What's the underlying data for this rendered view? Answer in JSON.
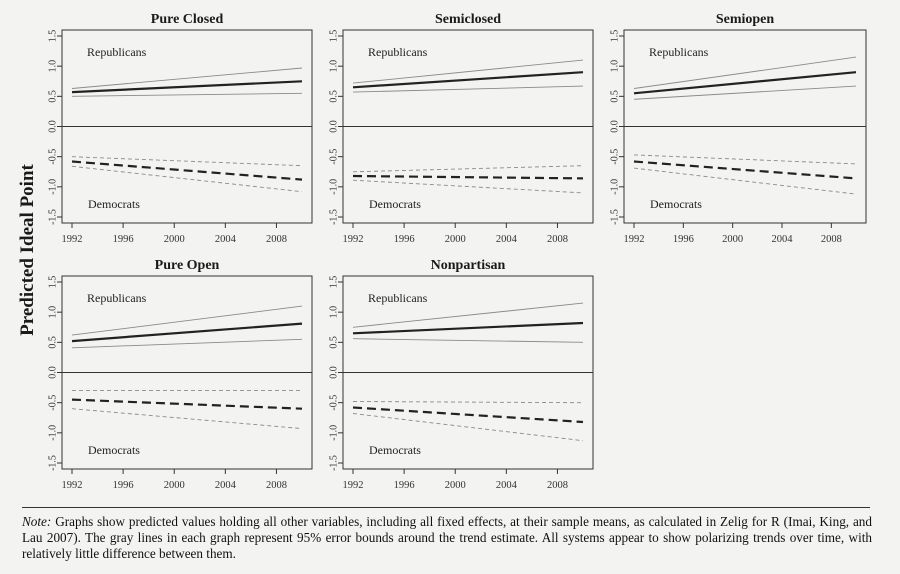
{
  "figure": {
    "y_axis_label": "Predicted Ideal Point",
    "note_label": "Note:",
    "note_text": "Graphs show predicted values holding all other variables, including all fixed effects, at their sample means, as calculated in Zelig for R (Imai, King, and Lau 2007). The gray lines in each graph represent 95% error bounds around the trend estimate. All systems appear to show polarizing trends over time, with relatively little difference between them."
  },
  "colors": {
    "background": "#f3f3f1",
    "estimate_line": "#222222",
    "error_band": "#8a8a8a",
    "axis": "#333333"
  },
  "chart_data": [
    {
      "type": "line",
      "title": "Pure Closed",
      "xlim": [
        1992,
        2010
      ],
      "ylim": [
        -1.5,
        1.5
      ],
      "xticks": [
        "1992",
        "1996",
        "2000",
        "2004",
        "2008"
      ],
      "yticks": [
        "1.5",
        "1.0",
        "0.5",
        "0.0",
        "-0.5",
        "-1.0",
        "-1.5"
      ],
      "series_labels": {
        "republicans": "Republicans",
        "democrats": "Democrats"
      },
      "republicans": {
        "x": [
          1992,
          2010
        ],
        "estimate": [
          0.57,
          0.75
        ],
        "upper": [
          0.63,
          0.97
        ],
        "lower": [
          0.5,
          0.55
        ]
      },
      "democrats": {
        "x": [
          1992,
          2010
        ],
        "estimate": [
          -0.58,
          -0.88
        ],
        "upper": [
          -0.5,
          -0.65
        ],
        "lower": [
          -0.66,
          -1.08
        ]
      }
    },
    {
      "type": "line",
      "title": "Semiclosed",
      "xlim": [
        1992,
        2010
      ],
      "ylim": [
        -1.5,
        1.5
      ],
      "xticks": [
        "1992",
        "1996",
        "2000",
        "2004",
        "2008"
      ],
      "yticks": [
        "1.5",
        "1.0",
        "0.5",
        "0.0",
        "-0.5",
        "-1.0",
        "-1.5"
      ],
      "series_labels": {
        "republicans": "Republicans",
        "democrats": "Democrats"
      },
      "republicans": {
        "x": [
          1992,
          2010
        ],
        "estimate": [
          0.65,
          0.9
        ],
        "upper": [
          0.72,
          1.1
        ],
        "lower": [
          0.57,
          0.67
        ]
      },
      "democrats": {
        "x": [
          1992,
          2010
        ],
        "estimate": [
          -0.82,
          -0.86
        ],
        "upper": [
          -0.75,
          -0.65
        ],
        "lower": [
          -0.89,
          -1.1
        ]
      }
    },
    {
      "type": "line",
      "title": "Semiopen",
      "xlim": [
        1992,
        2010
      ],
      "ylim": [
        -1.5,
        1.5
      ],
      "xticks": [
        "1992",
        "1996",
        "2000",
        "2004",
        "2008"
      ],
      "yticks": [
        "1.5",
        "1.0",
        "0.5",
        "0.0",
        "-0.5",
        "-1.0",
        "-1.5"
      ],
      "series_labels": {
        "republicans": "Republicans",
        "democrats": "Democrats"
      },
      "republicans": {
        "x": [
          1992,
          2010
        ],
        "estimate": [
          0.55,
          0.9
        ],
        "upper": [
          0.63,
          1.15
        ],
        "lower": [
          0.45,
          0.67
        ]
      },
      "democrats": {
        "x": [
          1992,
          2010
        ],
        "estimate": [
          -0.58,
          -0.86
        ],
        "upper": [
          -0.47,
          -0.62
        ],
        "lower": [
          -0.69,
          -1.12
        ]
      }
    },
    {
      "type": "line",
      "title": "Pure Open",
      "xlim": [
        1992,
        2010
      ],
      "ylim": [
        -1.5,
        1.5
      ],
      "xticks": [
        "1992",
        "1996",
        "2000",
        "2004",
        "2008"
      ],
      "yticks": [
        "1.5",
        "1.0",
        "0.5",
        "0.0",
        "-0.5",
        "-1.0",
        "-1.5"
      ],
      "series_labels": {
        "republicans": "Republicans",
        "democrats": "Democrats"
      },
      "republicans": {
        "x": [
          1992,
          2010
        ],
        "estimate": [
          0.52,
          0.81
        ],
        "upper": [
          0.62,
          1.1
        ],
        "lower": [
          0.41,
          0.55
        ]
      },
      "democrats": {
        "x": [
          1992,
          2010
        ],
        "estimate": [
          -0.45,
          -0.6
        ],
        "upper": [
          -0.3,
          -0.3
        ],
        "lower": [
          -0.6,
          -0.93
        ]
      }
    },
    {
      "type": "line",
      "title": "Nonpartisan",
      "xlim": [
        1992,
        2010
      ],
      "ylim": [
        -1.5,
        1.5
      ],
      "xticks": [
        "1992",
        "1996",
        "2000",
        "2004",
        "2008"
      ],
      "yticks": [
        "1.5",
        "1.0",
        "0.5",
        "0.0",
        "-0.5",
        "-1.0",
        "-1.5"
      ],
      "series_labels": {
        "republicans": "Republicans",
        "democrats": "Democrats"
      },
      "republicans": {
        "x": [
          1992,
          2010
        ],
        "estimate": [
          0.65,
          0.82
        ],
        "upper": [
          0.75,
          1.15
        ],
        "lower": [
          0.56,
          0.5
        ]
      },
      "democrats": {
        "x": [
          1992,
          2010
        ],
        "estimate": [
          -0.58,
          -0.82
        ],
        "upper": [
          -0.48,
          -0.5
        ],
        "lower": [
          -0.68,
          -1.13
        ]
      }
    }
  ]
}
